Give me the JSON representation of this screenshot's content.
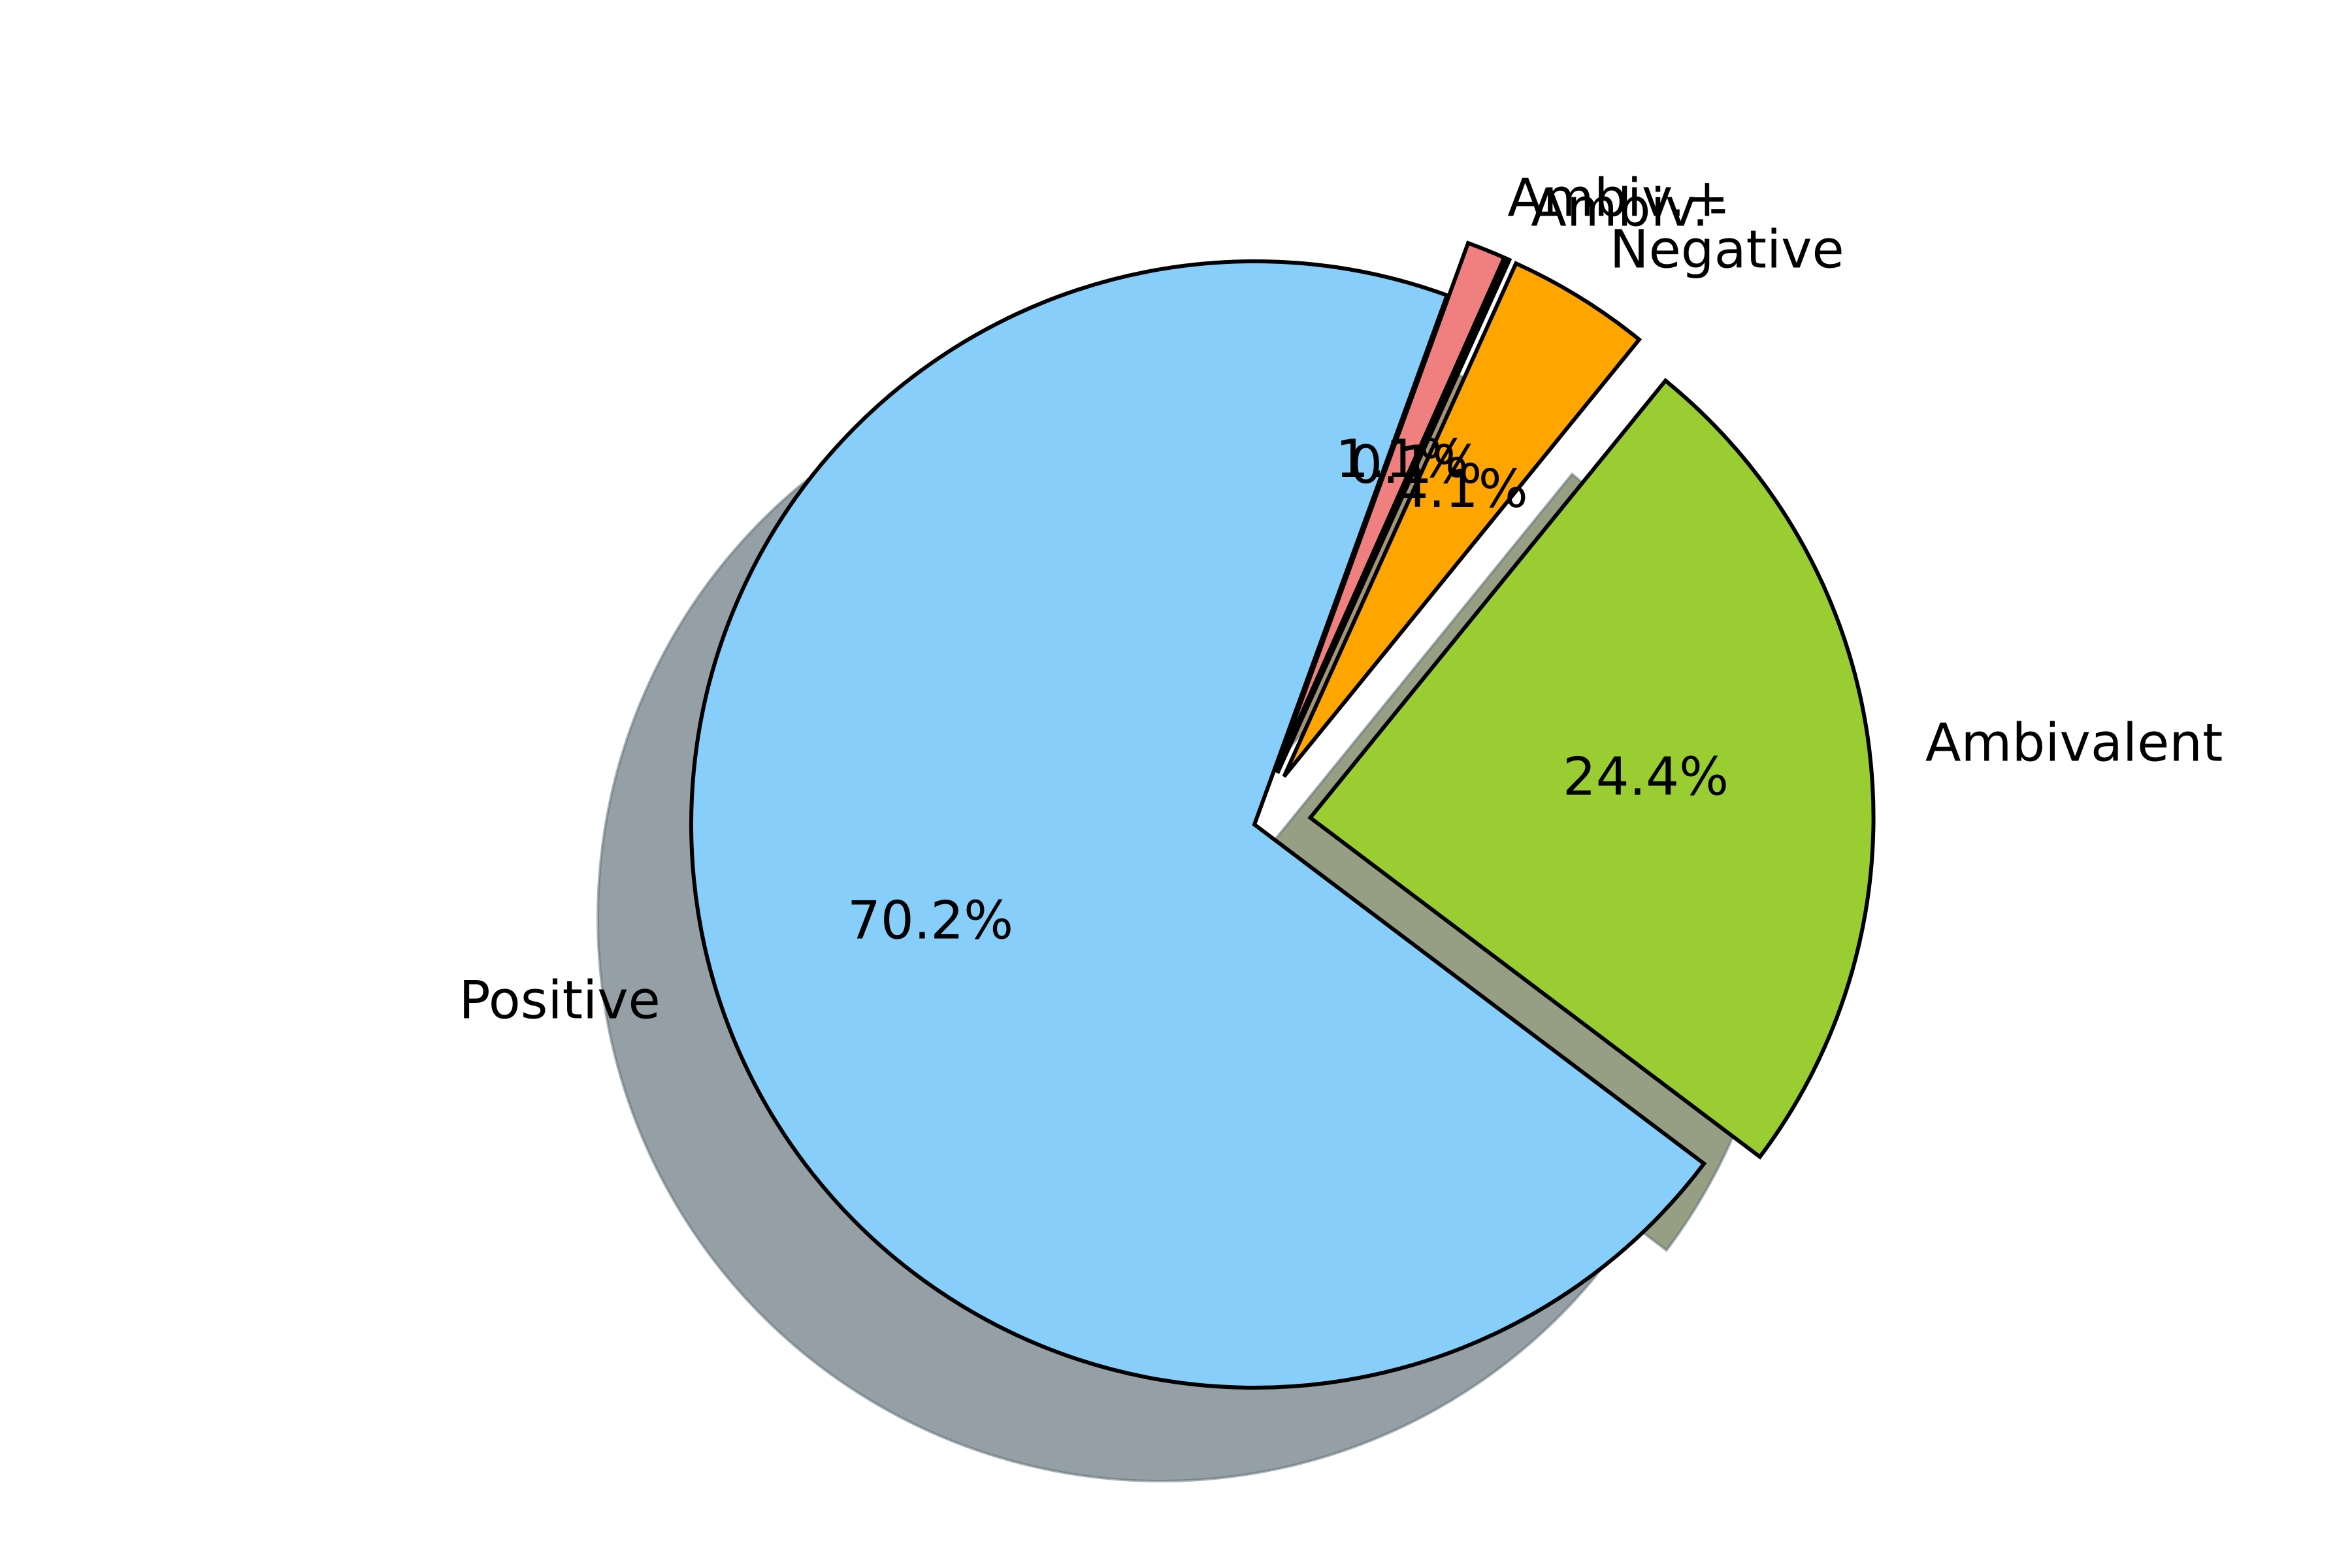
{
  "chart_data": {
    "type": "pie",
    "title": "",
    "slices": [
      {
        "label": "Positive",
        "value": 70.2,
        "pct_label": "70.2%",
        "color": "#87CEFA",
        "exploded": true
      },
      {
        "label": "Ambivalent",
        "value": 24.4,
        "pct_label": "24.4%",
        "color": "#9ACD32",
        "exploded": true
      },
      {
        "label": "Negative",
        "value": 4.1,
        "pct_label": "4.1%",
        "color": "#FFA500",
        "exploded": true
      },
      {
        "label": "Ambiv.-",
        "value": 0.1,
        "pct_label": "0.1%",
        "color": "#000000",
        "exploded": true
      },
      {
        "label": "Ambiv.+",
        "value": 1.1,
        "pct_label": "1.1%",
        "color": "#F08080",
        "exploded": true
      }
    ],
    "start_angle": 70,
    "direction": "counterclockwise",
    "shadow": true,
    "edge_color": "#000000",
    "shadow_color": "#94A0A6"
  }
}
